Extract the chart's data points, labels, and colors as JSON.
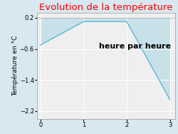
{
  "title": "Evolution de la température",
  "title_color": "#ff0000",
  "ylabel": "Température en °C",
  "xlabel": "heure par heure",
  "x": [
    0,
    1,
    2,
    3
  ],
  "y": [
    -0.5,
    0.1,
    0.1,
    -1.9
  ],
  "ylim": [
    -2.4,
    0.32
  ],
  "xlim": [
    -0.08,
    3.12
  ],
  "yticks": [
    0.2,
    -0.6,
    -1.4,
    -2.2
  ],
  "xticks": [
    0,
    1,
    2,
    3
  ],
  "fill_color": "#aed8e6",
  "fill_alpha": 0.6,
  "line_color": "#5bb8d4",
  "line_width": 1.0,
  "bg_color": "#d8e8f0",
  "plot_bg_color": "#efefef",
  "grid_color": "#ffffff",
  "title_fontsize": 9.5,
  "ylabel_fontsize": 6.5,
  "xlabel_fontsize": 8,
  "tick_fontsize": 6
}
